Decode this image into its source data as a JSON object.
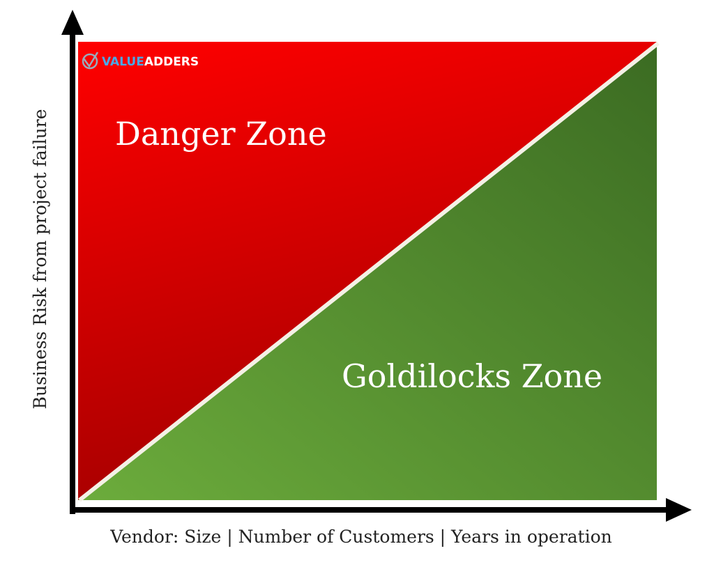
{
  "logo": {
    "brand": "VALUE",
    "suffix": "ADDERS"
  },
  "zones": [
    {
      "label": "Danger Zone"
    },
    {
      "label": "Goldilocks Zone"
    }
  ],
  "axes": {
    "x_label": "Vendor: Size | Number of Customers | Years in operation",
    "y_label": "Business Risk from project failure"
  }
}
